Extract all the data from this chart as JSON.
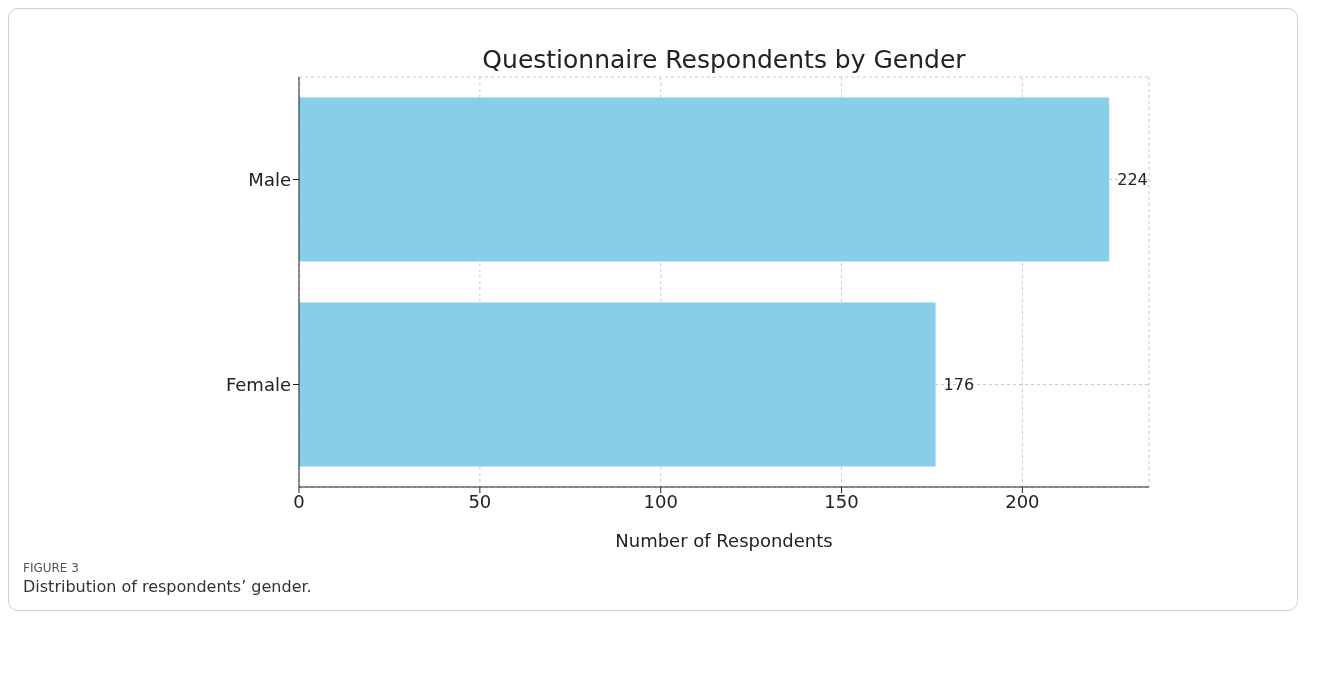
{
  "chart_data": {
    "type": "bar",
    "orientation": "horizontal",
    "title": "Questionnaire Respondents by Gender",
    "xlabel": "Number of Respondents",
    "categories": [
      "Male",
      "Female"
    ],
    "values": [
      224,
      176
    ],
    "color": "#87ceeb",
    "xlim": [
      0,
      235
    ],
    "xticks": [
      0,
      50,
      100,
      150,
      200
    ],
    "grid": true,
    "data_labels": true,
    "annotations": [
      "FIGURE 3",
      "Distribution of respondents’ gender."
    ]
  }
}
